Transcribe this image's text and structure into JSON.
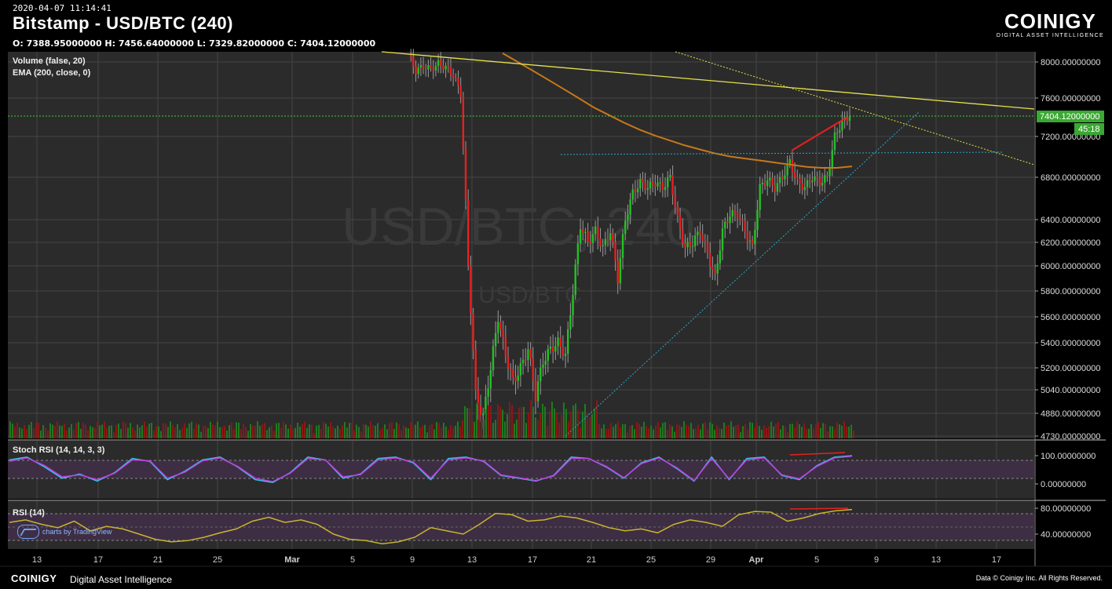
{
  "header": {
    "timestamp": "2020-04-07 11:14:41",
    "title": "Bitstamp - USD/BTC (240)",
    "ohlc": "O: 7388.95000000 H: 7456.64000000 L: 7329.82000000 C: 7404.12000000"
  },
  "brand": {
    "name": "COINIGY",
    "subtitle": "DIGITAL ASSET INTELLIGENCE",
    "footer_name": "COINIGY",
    "footer_tagline": "Digital Asset Intelligence",
    "copyright": "Data © Coinigy Inc.  All Rights Reserved.",
    "tv_badge": "charts by TradingView"
  },
  "watermark": {
    "big": "USD/BTC, 240",
    "small": "USD/BTC"
  },
  "colors": {
    "up": "#22c222",
    "down": "#e82020",
    "ema": "#c8781a",
    "trend": "#e6e04a",
    "support": "#2aa8c8",
    "price_badge": "#3aa832",
    "stoch_k": "#2ec8e8",
    "stoch_d": "#c040e0",
    "rsi": "#c8b430"
  },
  "chart_data": [
    {
      "type": "candlestick",
      "title": "Bitstamp - USD/BTC (240)",
      "indicators": [
        "Volume (false, 20)",
        "EMA (200, close, 0)"
      ],
      "y_ticks": [
        "8000.00000000",
        "7600.00000000",
        "7200.00000000",
        "6800.00000000",
        "6400.00000000",
        "6200.00000000",
        "6000.00000000",
        "5800.00000000",
        "5600.00000000",
        "5400.00000000",
        "5200.00000000",
        "5040.00000000",
        "4880.00000000",
        "4730.00000000"
      ],
      "x_ticks": [
        "13",
        "17",
        "21",
        "25",
        "Mar",
        "5",
        "9",
        "13",
        "17",
        "21",
        "25",
        "29",
        "Apr",
        "5",
        "9",
        "13",
        "17"
      ],
      "ylim": [
        4700,
        8150
      ],
      "last_price": "7404.12000000",
      "countdown": "45:18",
      "series_close": [
        8080,
        7900,
        7950,
        7920,
        7980,
        7940,
        7850,
        7650,
        6000,
        5000,
        4850,
        5200,
        5600,
        5300,
        5100,
        5200,
        5350,
        5000,
        5250,
        5350,
        5400,
        5300,
        5800,
        6350,
        6200,
        6300,
        6150,
        6300,
        5900,
        6400,
        6650,
        6750,
        6700,
        6750,
        6700,
        6800,
        6400,
        6150,
        6200,
        6300,
        6100,
        5900,
        6300,
        6450,
        6450,
        6300,
        6150,
        6700,
        6780,
        6700,
        6800,
        6950,
        6750,
        6700,
        6800,
        6750,
        6800,
        7200,
        7350,
        7404
      ],
      "ema200": [
        8100,
        8000,
        7900,
        7800,
        7700,
        7600,
        7500,
        7420,
        7340,
        7270,
        7210,
        7160,
        7110,
        7070,
        7030,
        7000,
        6980,
        6960,
        6940,
        6920,
        6900,
        6890,
        6890,
        6905
      ],
      "trendline_resistance": {
        "from": [
          "Feb 16",
          8150
        ],
        "to": [
          "Apr 20",
          7500
        ]
      },
      "support_line": {
        "from": [
          "Mar 20",
          4730
        ],
        "to": [
          "Apr 11",
          7300
        ]
      },
      "horizontal_level": 7000
    },
    {
      "type": "line",
      "title": "Stoch RSI (14, 14, 3, 3)",
      "y_ticks": [
        "100.00000000",
        "0.00000000"
      ],
      "series": [
        {
          "name": "K",
          "values": [
            85,
            95,
            60,
            20,
            35,
            10,
            40,
            90,
            80,
            15,
            45,
            85,
            95,
            60,
            15,
            5,
            40,
            95,
            85,
            20,
            35,
            90,
            95,
            75,
            15,
            90,
            95,
            80,
            30,
            20,
            10,
            30,
            95,
            90,
            60,
            20,
            75,
            95,
            55,
            10,
            95,
            15,
            90,
            95,
            30,
            15,
            65,
            95,
            100
          ]
        },
        {
          "name": "D",
          "values": [
            80,
            92,
            65,
            25,
            32,
            15,
            38,
            85,
            82,
            20,
            42,
            82,
            92,
            62,
            20,
            8,
            38,
            90,
            85,
            25,
            33,
            85,
            92,
            78,
            20,
            85,
            92,
            82,
            32,
            22,
            12,
            28,
            90,
            90,
            62,
            22,
            72,
            92,
            58,
            12,
            90,
            18,
            85,
            92,
            32,
            18,
            62,
            92,
            98
          ]
        }
      ]
    },
    {
      "type": "line",
      "title": "RSI (14)",
      "y_ticks": [
        "80.00000000",
        "40.00000000"
      ],
      "series": [
        {
          "name": "RSI",
          "values": [
            58,
            62,
            55,
            50,
            60,
            45,
            52,
            48,
            40,
            32,
            28,
            30,
            35,
            42,
            48,
            60,
            66,
            58,
            62,
            55,
            40,
            32,
            30,
            25,
            28,
            35,
            50,
            45,
            40,
            55,
            72,
            70,
            60,
            62,
            68,
            65,
            58,
            50,
            45,
            48,
            42,
            55,
            62,
            58,
            52,
            70,
            75,
            74,
            60,
            65,
            72,
            76,
            78
          ]
        }
      ]
    }
  ]
}
